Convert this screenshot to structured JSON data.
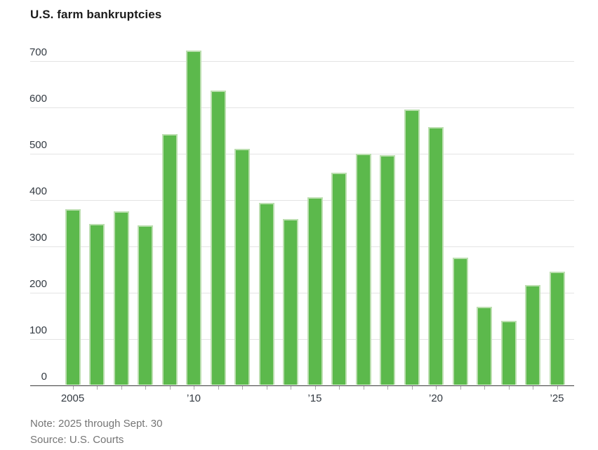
{
  "page": {
    "background_color": "#ffffff"
  },
  "chart_data": {
    "type": "bar",
    "title": "U.S. farm bankruptcies",
    "categories": [
      2005,
      2006,
      2007,
      2008,
      2009,
      2010,
      2011,
      2012,
      2013,
      2014,
      2015,
      2016,
      2017,
      2018,
      2019,
      2020,
      2021,
      2022,
      2023,
      2024,
      2025
    ],
    "values": [
      380,
      348,
      376,
      345,
      542,
      723,
      636,
      510,
      393,
      358,
      406,
      459,
      500,
      497,
      596,
      558,
      276,
      169,
      139,
      216,
      245
    ],
    "xlabel": "",
    "ylabel": "",
    "ylim": [
      0,
      700
    ],
    "yticks": [
      0,
      100,
      200,
      300,
      400,
      500,
      600,
      700
    ],
    "xticks": [
      {
        "year": 2005,
        "label": "2005"
      },
      {
        "year": 2010,
        "label": "’10"
      },
      {
        "year": 2015,
        "label": "’15"
      },
      {
        "year": 2020,
        "label": "’20"
      },
      {
        "year": 2025,
        "label": "’25"
      }
    ],
    "grid": true,
    "legend_position": "none",
    "bar_color": "#5cb94c",
    "bar_edge_color": "#bcdfb0",
    "gridline_color": "#e4e4e4",
    "axis_color": "#3c3c3c",
    "note": "Note: 2025 through Sept. 30",
    "source": "Source: U.S. Courts"
  }
}
